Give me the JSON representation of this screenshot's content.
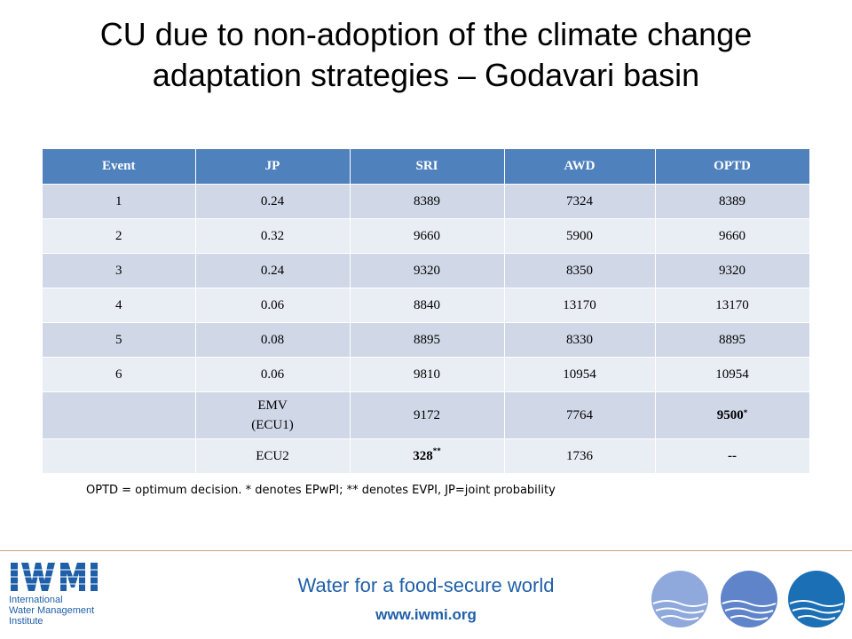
{
  "title": {
    "line1": "CU due to non-adoption of the climate change",
    "line2": "adaptation strategies – Godavari basin"
  },
  "table": {
    "headers": [
      "Event",
      "JP",
      "SRI",
      "AWD",
      "OPTD"
    ],
    "rows": [
      [
        "1",
        "0.24",
        "8389",
        "7324",
        "8389"
      ],
      [
        "2",
        "0.32",
        "9660",
        "5900",
        "9660"
      ],
      [
        "3",
        "0.24",
        "9320",
        "8350",
        "9320"
      ],
      [
        "4",
        "0.06",
        "8840",
        "13170",
        "13170"
      ],
      [
        "5",
        "0.08",
        "8895",
        "8330",
        "8895"
      ],
      [
        "6",
        "0.06",
        "9810",
        "10954",
        "10954"
      ]
    ],
    "emv_row": {
      "event": "",
      "label_line1": "EMV",
      "label_line2": "(ECU1)",
      "sri": "9172",
      "awd": "7764",
      "optd": "9500",
      "optd_sup": "*"
    },
    "ecu2_row": {
      "event": "",
      "label": "ECU2",
      "sri": "328",
      "sri_sup": "**",
      "awd": "1736",
      "optd": "--"
    }
  },
  "note": "OPTD = optimum decision. * denotes EPwPI; ** denotes EVPI, JP=joint probability",
  "footer": {
    "tagline": "Water for a food-secure world",
    "url": "www.iwmi.org",
    "logo_letters": "IWMI",
    "logo_line1": "International",
    "logo_line2": "Water Management",
    "logo_line3": "Institute"
  },
  "colors": {
    "header_bg": "#4f81bd",
    "row_odd": "#d0d8e8",
    "row_even": "#e9edf4",
    "brand_blue": "#1f5fa8"
  }
}
